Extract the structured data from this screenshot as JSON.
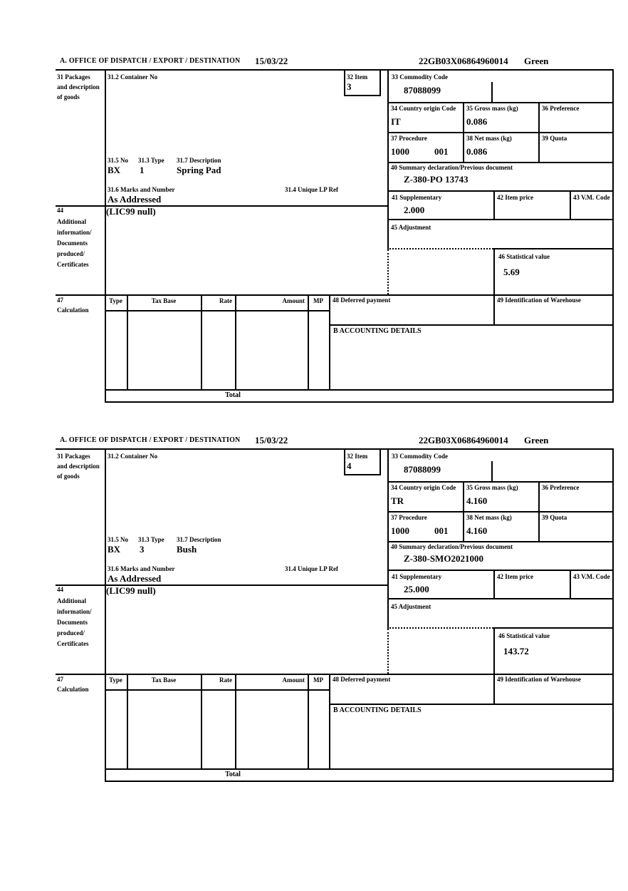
{
  "header": {
    "title": "A. OFFICE OF DISPATCH / EXPORT / DESTINATION",
    "date": "15/03/22",
    "reference": "22GB03X06864960014",
    "status": "Green"
  },
  "labels": {
    "box31": "31 Packages and description of goods",
    "box31_2": "31.2 Container No",
    "box31_5": "31.5 No",
    "box31_3": "31.3 Type",
    "box31_7": "31.7 Description",
    "box31_6": "31.6 Marks and Number",
    "box31_4": "31.4 Unique LP Ref",
    "box32": "32 Item",
    "box33": "33 Commodity Code",
    "box34": "34 Country origin Code",
    "box35": "35 Gross mass (kg)",
    "box36": "36 Preference",
    "box37": "37 Procedure",
    "box38": "38 Net mass (kg)",
    "box39": "39 Quota",
    "box40": "40 Summary declaration/Previous document",
    "box41": "41 Supplementary",
    "box42": "42 Item price",
    "box43": "43 V.M. Code",
    "box44_num": "44",
    "box44_text": "Additional information/ Documents produced/ Certificates",
    "box45": "45 Adjustment",
    "box46": "46 Statistical value",
    "box47_num": "47",
    "box47_text": "Calculation",
    "box48": "48 Deferred payment",
    "box49": "49 Identification of Warehouse",
    "accounting": "B ACCOUNTING DETAILS",
    "total": "Total",
    "calc_columns": [
      "Type",
      "Tax Base",
      "Rate",
      "Amount",
      "MP"
    ]
  },
  "items": [
    {
      "item_no": "3",
      "container_no": "",
      "commodity_code": "87088099",
      "country_origin": "IT",
      "gross_mass": "0.086",
      "preference": "",
      "procedure": "1000",
      "procedure_extra": "001",
      "net_mass": "0.086",
      "quota": "",
      "previous_document": "Z-380-PO 13743",
      "supplementary": "2.000",
      "item_price": "",
      "vm_code": "",
      "adjustment": "",
      "statistical_value": "5.69",
      "package_code": "BX",
      "package_count": "1",
      "description": "Spring Pad",
      "marks": "As Addressed",
      "unique_lp_ref": "",
      "additional_info": "(LIC99 null)"
    },
    {
      "item_no": "4",
      "container_no": "",
      "commodity_code": "87088099",
      "country_origin": "TR",
      "gross_mass": "4.160",
      "preference": "",
      "procedure": "1000",
      "procedure_extra": "001",
      "net_mass": "4.160",
      "quota": "",
      "previous_document": "Z-380-SMO2021000",
      "supplementary": "25.000",
      "item_price": "",
      "vm_code": "",
      "adjustment": "",
      "statistical_value": "143.72",
      "package_code": "BX",
      "package_count": "3",
      "description": "Bush",
      "marks": "As Addressed",
      "unique_lp_ref": "",
      "additional_info": "(LIC99 null)"
    }
  ]
}
